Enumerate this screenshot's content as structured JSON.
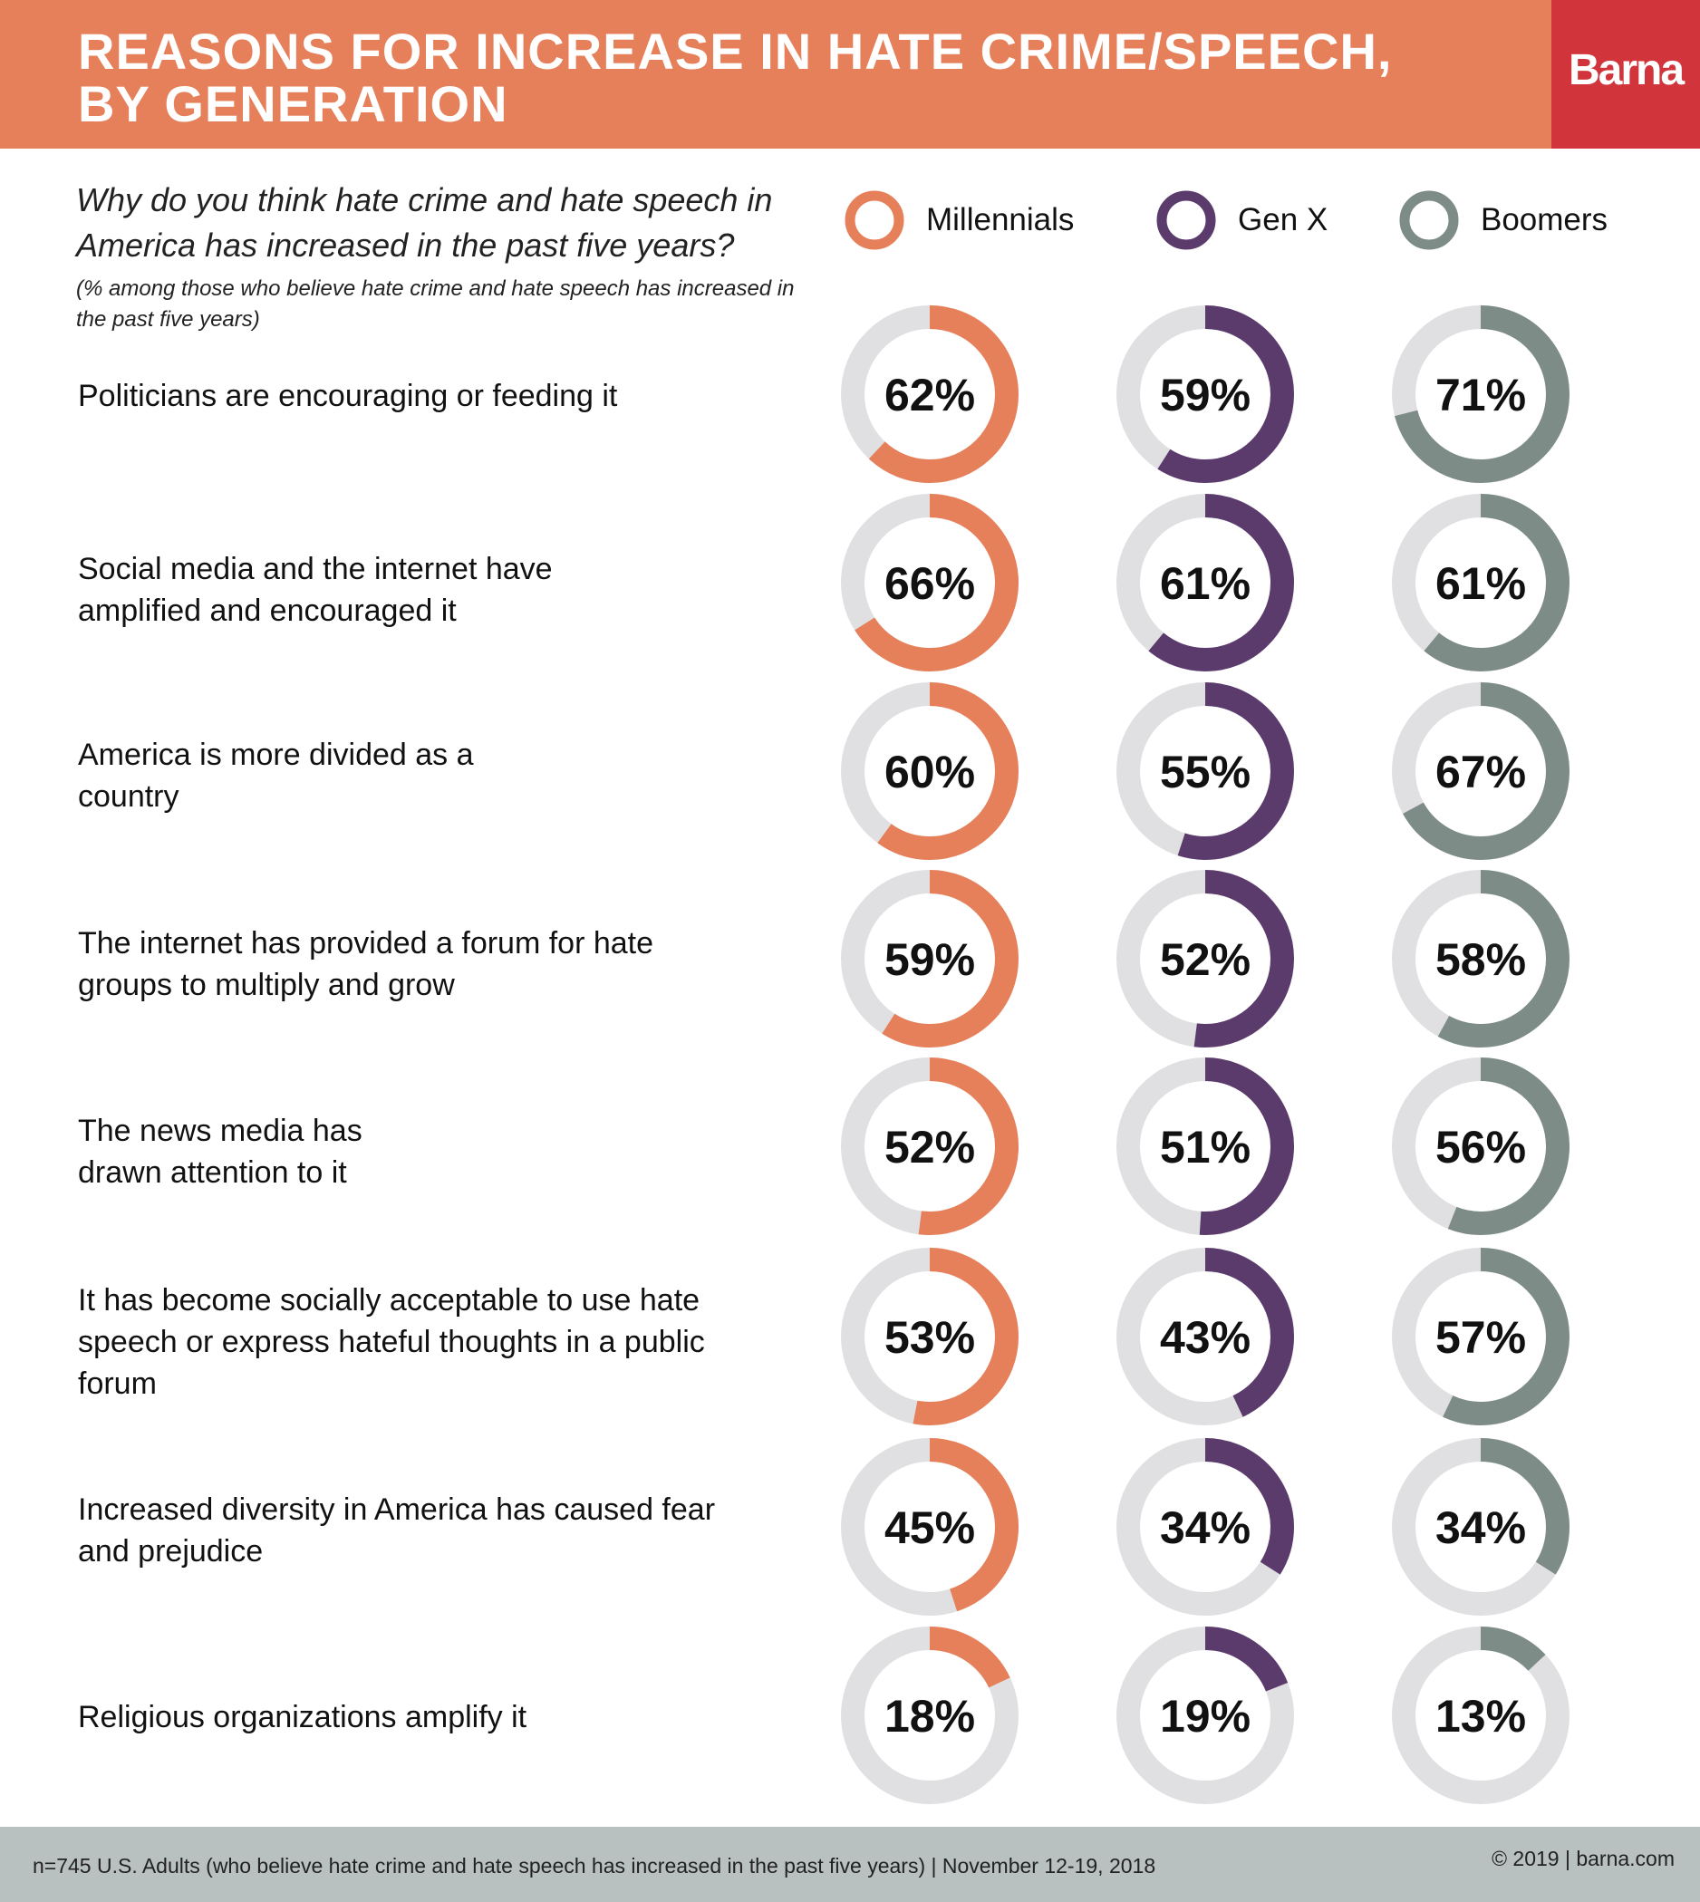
{
  "header": {
    "title": "REASONS FOR INCREASE IN HATE CRIME/SPEECH,\nBY GENERATION",
    "logo": "Barna"
  },
  "question": "Why do you think hate crime and hate speech in America has increased in the past five years?",
  "note": "(% among those who believe hate crime and hate speech has increased in the past five years)",
  "colors": {
    "header_bg": "#e6805a",
    "logo_bg": "#d1343a",
    "track": "#e0e0e2",
    "footer_bg": "#b8c0c0"
  },
  "footer": {
    "note": "n=745 U.S. Adults (who believe hate crime and hate speech has increased in the past five years) | November 12-19, 2018",
    "copyright": "© 2019 | barna.com"
  },
  "chart_data": {
    "type": "donut",
    "categories": [
      "Politicians are encouraging or feeding it",
      "Social media and the internet have amplified and encouraged it",
      "America is more divided as a country",
      "The internet has provided a forum for hate groups to multiply and grow",
      "The news media has drawn attention to it",
      "It has become socially acceptable to use hate speech or express hateful thoughts in a public forum",
      "Increased diversity in America has caused fear and prejudice",
      "Religious organizations amplify it"
    ],
    "series": [
      {
        "name": "Millennials",
        "color": "#e6805a",
        "values": [
          62,
          66,
          60,
          59,
          52,
          53,
          45,
          18
        ]
      },
      {
        "name": "Gen X",
        "color": "#5b3a6c",
        "values": [
          59,
          61,
          55,
          52,
          51,
          43,
          34,
          19
        ]
      },
      {
        "name": "Boomers",
        "color": "#7e8c88",
        "values": [
          71,
          61,
          67,
          58,
          56,
          57,
          34,
          13
        ]
      }
    ],
    "value_format": "percent",
    "legend": "top"
  }
}
